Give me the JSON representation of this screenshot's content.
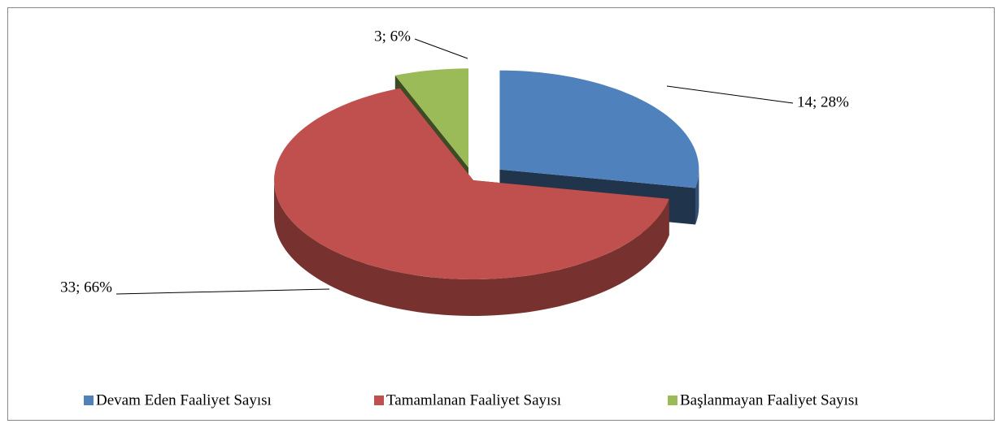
{
  "chart_data": {
    "type": "pie3d",
    "categories": [
      "Devam Eden Faaliyet Sayısı",
      "Tamamlanan Faaliyet Sayısı",
      "Başlanmayan Faaliyet Sayısı"
    ],
    "values": [
      14,
      33,
      3
    ],
    "value_labels": [
      "14; 28%",
      "33; 66%",
      "3; 6%"
    ],
    "colors": [
      "#4f81bd",
      "#c0504d",
      "#9bbb59"
    ],
    "legend": "bottom"
  }
}
